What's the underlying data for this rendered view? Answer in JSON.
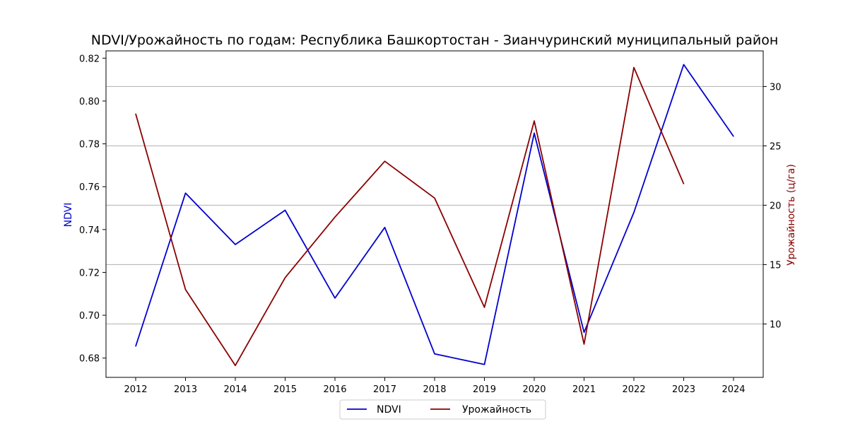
{
  "chart_data": {
    "type": "line",
    "title": "NDVI/Урожайность по годам: Республика Башкортостан - Зианчуринский муниципальный район",
    "x": [
      "2012",
      "2013",
      "2014",
      "2015",
      "2016",
      "2017",
      "2018",
      "2019",
      "2020",
      "2021",
      "2022",
      "2023",
      "2024"
    ],
    "series": [
      {
        "name": "NDVI",
        "axis": "left",
        "color": "#0000cd",
        "values": [
          0.6855,
          0.757,
          0.733,
          0.749,
          0.708,
          0.741,
          0.682,
          0.677,
          0.785,
          0.692,
          0.748,
          0.817,
          0.7835
        ]
      },
      {
        "name": "Урожайность",
        "axis": "right",
        "color": "#8b0000",
        "values": [
          27.7,
          12.9,
          6.5,
          13.9,
          19.0,
          23.7,
          20.6,
          11.4,
          27.1,
          8.3,
          31.6,
          21.8,
          null
        ]
      }
    ],
    "ylabel_left": "NDVI",
    "ylabel_right": "Урожайность (ц/га)",
    "ylim_left": [
      0.671,
      0.8234
    ],
    "ylim_right": [
      5.5,
      33.0
    ],
    "yticks_left": [
      "0.68",
      "0.70",
      "0.72",
      "0.74",
      "0.76",
      "0.78",
      "0.80",
      "0.82"
    ],
    "yticks_right": [
      "10",
      "15",
      "20",
      "25",
      "30"
    ],
    "grid": "horizontal on right axis",
    "legend_placement": "bottom-center"
  }
}
